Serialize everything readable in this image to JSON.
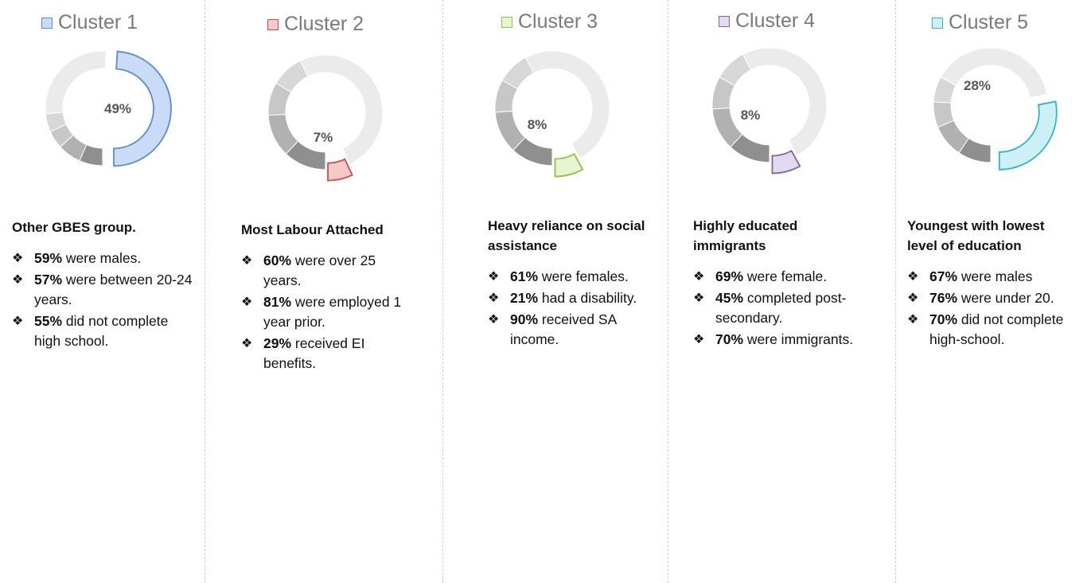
{
  "chart_data": [
    {
      "type": "pie",
      "title": "Cluster 1",
      "highlight_value": 49,
      "value_label": "49%",
      "color": "#5b8bd0",
      "fill": "#c9dbf7",
      "heading": "Other GBES group.",
      "bullets": [
        {
          "pct": "59%",
          "text": " were males."
        },
        {
          "pct": "57%",
          "text": " were between 20-24 years."
        },
        {
          "pct": "55%",
          "text": " did not complete high school."
        }
      ]
    },
    {
      "type": "pie",
      "title": "Cluster 2",
      "highlight_value": 7,
      "value_label": "7%",
      "color": "#cf4a4a",
      "fill": "#f6c9c9",
      "heading": "Most Labour Attached",
      "bullets": [
        {
          "pct": "60%",
          "text": " were over 25 years."
        },
        {
          "pct": "81%",
          "text": " were employed 1 year prior."
        },
        {
          "pct": "29%",
          "text": " received EI benefits."
        }
      ]
    },
    {
      "type": "pie",
      "title": "Cluster 3",
      "highlight_value": 8,
      "value_label": "8%",
      "color": "#8fc14a",
      "fill": "#e6f4cf",
      "heading": "Heavy reliance on social assistance",
      "bullets": [
        {
          "pct": "61%",
          "text": " were females."
        },
        {
          "pct": "21%",
          "text": " had a disability."
        },
        {
          "pct": "90%",
          "text": " received SA income."
        }
      ]
    },
    {
      "type": "pie",
      "title": "Cluster 4",
      "highlight_value": 8,
      "value_label": "8%",
      "color": "#8064a2",
      "fill": "#e3d9f0",
      "heading": "Highly educated immigrants",
      "bullets": [
        {
          "pct": "69%",
          "text": " were female."
        },
        {
          "pct": "45%",
          "text": " completed post-secondary."
        },
        {
          "pct": "70%",
          "text": " were immigrants."
        }
      ]
    },
    {
      "type": "pie",
      "title": "Cluster 5",
      "highlight_value": 28,
      "value_label": "28%",
      "color": "#31b3c8",
      "fill": "#ccf0f6",
      "heading": "Youngest with lowest level of education",
      "bullets": [
        {
          "pct": "67%",
          "text": " were males"
        },
        {
          "pct": "76%",
          "text": " were under 20."
        },
        {
          "pct": "70%",
          "text": " did not complete high-school."
        }
      ]
    }
  ]
}
